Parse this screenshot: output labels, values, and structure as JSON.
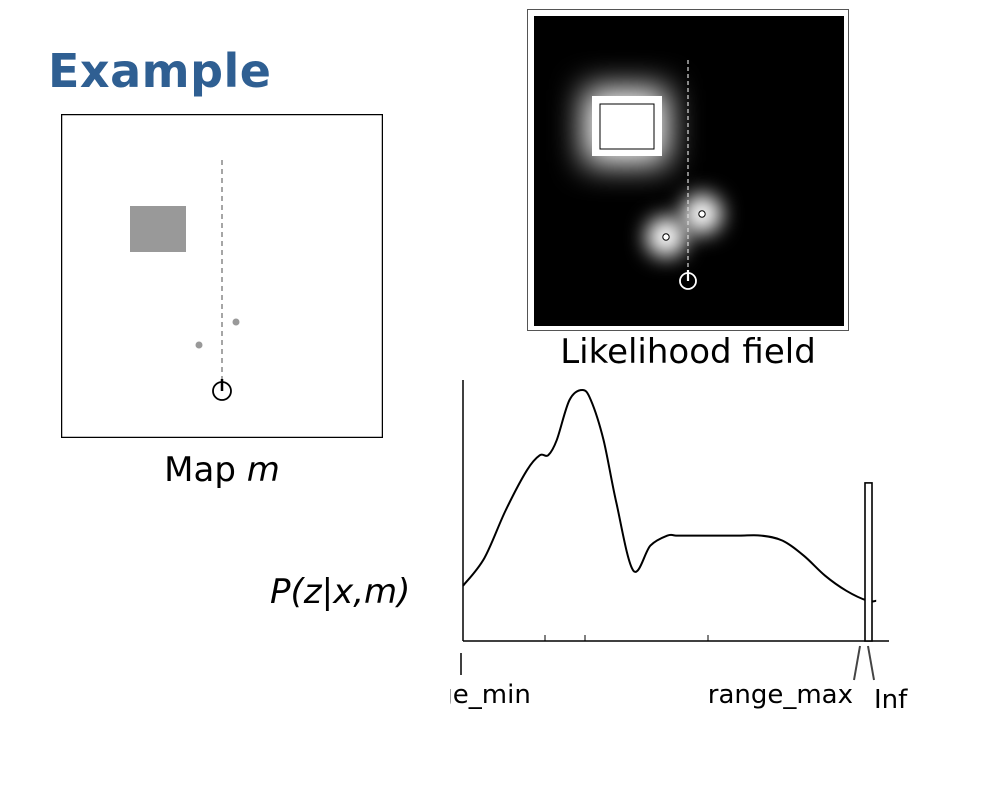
{
  "title": "Example",
  "map_caption": {
    "text": "Map ",
    "variable": "m"
  },
  "likelihood_caption": "Likelihood field",
  "chart_ylabel": "P(z|x,m)",
  "chart_data": {
    "type": "line",
    "title": "",
    "ylabel": "P(z|x,m)",
    "xlabel": "",
    "tick_labels": [
      "range_min",
      "range_max",
      "Inf"
    ],
    "curve": {
      "x": [
        0.0,
        0.05,
        0.1,
        0.15,
        0.18,
        0.2,
        0.22,
        0.25,
        0.28,
        0.3,
        0.33,
        0.36,
        0.4,
        0.44,
        0.48,
        0.5,
        0.52,
        0.55,
        0.6,
        0.65,
        0.7,
        0.75,
        0.8,
        0.85,
        0.9,
        0.95,
        0.97
      ],
      "y": [
        0.22,
        0.33,
        0.52,
        0.68,
        0.74,
        0.74,
        0.8,
        0.96,
        1.0,
        0.96,
        0.8,
        0.55,
        0.28,
        0.38,
        0.42,
        0.42,
        0.42,
        0.42,
        0.42,
        0.42,
        0.42,
        0.4,
        0.34,
        0.26,
        0.2,
        0.16,
        0.16
      ]
    },
    "spike": {
      "position": "Inf",
      "height": 0.63
    }
  },
  "icons": {
    "map_obstacle": "obstacle-square",
    "map_points": "beam-endpoint-dots",
    "robot": "robot-pose-icon"
  },
  "colors": {
    "title": "#2f5f92",
    "obstacle": "#999999",
    "field_background": "#000000",
    "field_glow": "#ffffff"
  }
}
